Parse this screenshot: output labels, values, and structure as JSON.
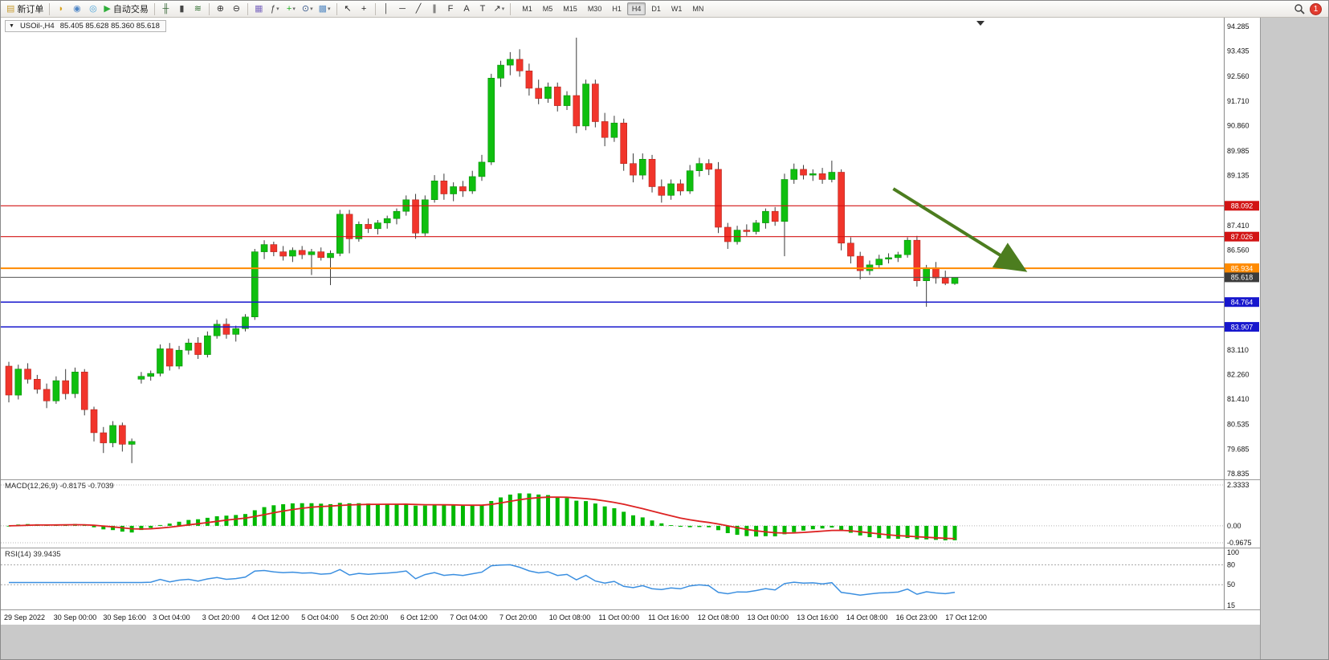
{
  "toolbar": {
    "buttons": [
      {
        "name": "new-order-button",
        "icon": "order-ticket-icon",
        "glyph": "▤",
        "glyph_color": "#c79b2f",
        "label": "新订单"
      },
      {
        "type": "separator"
      },
      {
        "name": "announcement-button",
        "icon": "megaphone-icon",
        "glyph": "◗",
        "glyph_color": "#d9a421"
      },
      {
        "name": "profile-button",
        "icon": "user-icon",
        "glyph": "◉",
        "glyph_color": "#4f86c6"
      },
      {
        "name": "community-button",
        "icon": "broadcast-icon",
        "glyph": "◎",
        "glyph_color": "#4aa3d8"
      },
      {
        "name": "autotrading-button",
        "icon": "play-icon",
        "glyph": "▶",
        "glyph_color": "#2fae3a",
        "label": "自动交易"
      },
      {
        "type": "separator"
      },
      {
        "name": "ohlc-bars-button",
        "icon": "ohlc-bars-icon",
        "glyph": "╫",
        "glyph_color": "#3d6b3d"
      },
      {
        "name": "candlestick-button",
        "icon": "candlestick-icon",
        "glyph": "▮",
        "glyph_color": "#444444"
      },
      {
        "name": "line-chart-button",
        "icon": "line-chart-icon",
        "glyph": "≋",
        "glyph_color": "#2e6e2e"
      },
      {
        "type": "separator"
      },
      {
        "name": "zoom-in-button",
        "icon": "zoom-in-icon",
        "glyph": "⊕",
        "glyph_color": "#333333"
      },
      {
        "name": "zoom-out-button",
        "icon": "zoom-out-icon",
        "glyph": "⊖",
        "glyph_color": "#333333"
      },
      {
        "type": "separator"
      },
      {
        "name": "tile-windows-button",
        "icon": "tile-windows-icon",
        "glyph": "▦",
        "glyph_color": "#7e6ac0"
      },
      {
        "name": "indicators-button",
        "icon": "function-icon",
        "glyph": "ƒ",
        "glyph_color": "#444444",
        "caret": true
      },
      {
        "name": "add-indicator-button",
        "icon": "plus-icon",
        "glyph": "+",
        "glyph_color": "#1faf1f",
        "caret": true
      },
      {
        "name": "periods-button",
        "icon": "clock-icon",
        "glyph": "⊙",
        "glyph_color": "#3a5a8c",
        "caret": true
      },
      {
        "name": "templates-button",
        "icon": "template-icon",
        "glyph": "▩",
        "glyph_color": "#5d8fc4",
        "caret": true
      },
      {
        "type": "separator"
      },
      {
        "name": "cursor-button",
        "icon": "cursor-icon",
        "glyph": "↖",
        "glyph_color": "#222222"
      },
      {
        "name": "crosshair-button",
        "icon": "crosshair-icon",
        "glyph": "+",
        "glyph_color": "#222222"
      },
      {
        "type": "separator"
      },
      {
        "name": "vertical-line-button",
        "icon": "vertical-line-icon",
        "glyph": "│",
        "glyph_color": "#333333"
      },
      {
        "name": "horizontal-line-button",
        "icon": "horizontal-line-icon",
        "glyph": "─",
        "glyph_color": "#333333"
      },
      {
        "name": "trendline-button",
        "icon": "trendline-icon",
        "glyph": "╱",
        "glyph_color": "#333333"
      },
      {
        "name": "channel-button",
        "icon": "channel-icon",
        "glyph": "∥",
        "glyph_color": "#333333"
      },
      {
        "name": "fibonacci-button",
        "icon": "fibonacci-icon",
        "glyph": "F",
        "glyph_color": "#333333"
      },
      {
        "name": "text-button",
        "icon": "text-icon",
        "glyph": "A",
        "glyph_color": "#333333"
      },
      {
        "name": "label-button",
        "icon": "text-label-icon",
        "glyph": "T",
        "glyph_color": "#333333"
      },
      {
        "name": "shapes-button",
        "icon": "arrow-shapes-icon",
        "glyph": "↗",
        "glyph_color": "#333333",
        "caret": true
      },
      {
        "type": "separator"
      }
    ],
    "timeframes": {
      "items": [
        "M1",
        "M5",
        "M15",
        "M30",
        "H1",
        "H4",
        "D1",
        "W1",
        "MN"
      ],
      "active": "H4"
    },
    "notification_count": "1"
  },
  "chart": {
    "title": {
      "symbol_period": "USOil-,H4",
      "ohlc": "85.405 85.628 85.360 85.618"
    }
  },
  "macd": {
    "label": "MACD(12,26,9) -0.8175 -0.7039",
    "value": "-0.8175",
    "signal_value": "-0.7039",
    "axis": [
      "2.3333",
      "0.00",
      "-0.9675"
    ],
    "histogram_color": "#00b800",
    "signal_color": "#dd2222"
  },
  "rsi": {
    "label": "RSI(14) 39.9435",
    "value": "39.9435",
    "axis": [
      "100",
      "80",
      "50",
      "15"
    ],
    "levels": [
      80,
      50
    ],
    "line_color": "#3b8fe0"
  },
  "chart_data": {
    "type": "candlestick",
    "symbol": "USOil-",
    "timeframe": "H4",
    "last_bar_ohlc": {
      "open": 85.405,
      "high": 85.628,
      "low": 85.36,
      "close": 85.618
    },
    "y_axis": {
      "min": 78.835,
      "max": 94.285,
      "ticks": [
        "94.285",
        "93.435",
        "92.560",
        "91.710",
        "90.860",
        "89.985",
        "89.135",
        "87.410",
        "86.560",
        "83.110",
        "82.260",
        "81.410",
        "80.535",
        "79.685",
        "78.835"
      ]
    },
    "x_axis": {
      "labels": [
        "29 Sep 2022",
        "30 Sep 00:00",
        "30 Sep 16:00",
        "3 Oct 04:00",
        "3 Oct 20:00",
        "4 Oct 12:00",
        "5 Oct 04:00",
        "5 Oct 20:00",
        "6 Oct 12:00",
        "7 Oct 04:00",
        "7 Oct 20:00",
        "10 Oct 08:00",
        "11 Oct 00:00",
        "11 Oct 16:00",
        "12 Oct 08:00",
        "13 Oct 00:00",
        "13 Oct 16:00",
        "14 Oct 08:00",
        "16 Oct 23:00",
        "17 Oct 12:00"
      ]
    },
    "horizontal_lines": [
      {
        "price": 88.092,
        "label": "88.092",
        "color": "#d21414",
        "width": 1.2
      },
      {
        "price": 87.026,
        "label": "87.026",
        "color": "#d21414",
        "width": 1.2
      },
      {
        "price": 85.934,
        "label": "85.934",
        "color": "#ff8a00",
        "width": 2
      },
      {
        "price": 84.764,
        "label": "84.764",
        "color": "#1717cd",
        "width": 1.5
      },
      {
        "price": 83.907,
        "label": "83.907",
        "color": "#1717cd",
        "width": 1.5
      }
    ],
    "current_price": {
      "price": 85.618,
      "label": "85.618",
      "badge_color": "#3c3c3c",
      "line_color": "#555555"
    },
    "annotation": {
      "type": "arrow",
      "color": "#4c7d1f",
      "from": {
        "bar": 93.5,
        "price": 88.68
      },
      "to": {
        "bar": 106.8,
        "price": 85.98
      }
    },
    "up_color": "#0fbf0f",
    "down_color": "#f1352b",
    "ohlc": [
      [
        82.55,
        82.7,
        81.3,
        81.55
      ],
      [
        81.55,
        82.6,
        81.4,
        82.45
      ],
      [
        82.45,
        82.65,
        81.95,
        82.1
      ],
      [
        82.1,
        82.25,
        81.6,
        81.75
      ],
      [
        81.75,
        81.95,
        81.1,
        81.35
      ],
      [
        81.35,
        82.2,
        81.25,
        82.05
      ],
      [
        82.05,
        82.45,
        81.4,
        81.6
      ],
      [
        81.6,
        82.5,
        81.45,
        82.35
      ],
      [
        82.35,
        82.45,
        80.85,
        81.05
      ],
      [
        81.05,
        81.15,
        79.95,
        80.25
      ],
      [
        80.25,
        80.45,
        79.55,
        79.9
      ],
      [
        79.9,
        80.65,
        79.75,
        80.5
      ],
      [
        80.5,
        80.6,
        79.6,
        79.85
      ],
      [
        79.85,
        80.05,
        79.2,
        79.95
      ],
      [
        82.1,
        82.35,
        81.95,
        82.2
      ],
      [
        82.2,
        82.4,
        82.05,
        82.3
      ],
      [
        82.3,
        83.3,
        82.2,
        83.15
      ],
      [
        83.15,
        83.35,
        82.4,
        82.55
      ],
      [
        82.55,
        83.25,
        82.45,
        83.1
      ],
      [
        83.1,
        83.5,
        82.95,
        83.35
      ],
      [
        83.35,
        83.55,
        82.8,
        82.95
      ],
      [
        82.95,
        83.75,
        82.85,
        83.6
      ],
      [
        83.6,
        84.15,
        83.5,
        84.0
      ],
      [
        84.0,
        84.2,
        83.5,
        83.65
      ],
      [
        83.65,
        83.95,
        83.4,
        83.85
      ],
      [
        83.85,
        84.35,
        83.75,
        84.25
      ],
      [
        84.25,
        86.6,
        84.15,
        86.5
      ],
      [
        86.5,
        86.9,
        86.25,
        86.75
      ],
      [
        86.75,
        86.85,
        86.35,
        86.5
      ],
      [
        86.5,
        86.7,
        86.2,
        86.35
      ],
      [
        86.35,
        86.65,
        86.15,
        86.55
      ],
      [
        86.55,
        86.7,
        86.25,
        86.4
      ],
      [
        86.4,
        86.6,
        85.7,
        86.5
      ],
      [
        86.5,
        86.65,
        86.2,
        86.3
      ],
      [
        86.3,
        86.55,
        85.35,
        86.45
      ],
      [
        86.45,
        87.95,
        86.35,
        87.8
      ],
      [
        87.8,
        87.95,
        86.45,
        86.95
      ],
      [
        86.95,
        87.55,
        86.85,
        87.45
      ],
      [
        87.45,
        87.65,
        87.15,
        87.3
      ],
      [
        87.3,
        87.6,
        87.1,
        87.5
      ],
      [
        87.5,
        87.75,
        87.3,
        87.65
      ],
      [
        87.65,
        88.0,
        87.45,
        87.9
      ],
      [
        87.9,
        88.45,
        87.75,
        88.3
      ],
      [
        88.3,
        88.5,
        86.95,
        87.15
      ],
      [
        87.15,
        88.45,
        87.05,
        88.3
      ],
      [
        88.3,
        89.15,
        88.2,
        88.95
      ],
      [
        88.95,
        89.2,
        88.3,
        88.5
      ],
      [
        88.5,
        88.9,
        88.25,
        88.75
      ],
      [
        88.75,
        88.95,
        88.4,
        88.6
      ],
      [
        88.6,
        89.3,
        88.5,
        89.1
      ],
      [
        89.1,
        89.85,
        88.95,
        89.6
      ],
      [
        89.6,
        92.65,
        89.5,
        92.5
      ],
      [
        92.5,
        93.1,
        92.2,
        92.95
      ],
      [
        92.95,
        93.4,
        92.6,
        93.15
      ],
      [
        93.15,
        93.5,
        92.55,
        92.75
      ],
      [
        92.75,
        93.0,
        91.9,
        92.15
      ],
      [
        92.15,
        92.45,
        91.6,
        91.8
      ],
      [
        91.8,
        92.35,
        91.65,
        92.2
      ],
      [
        92.2,
        92.35,
        91.35,
        91.55
      ],
      [
        91.55,
        92.05,
        91.4,
        91.9
      ],
      [
        91.9,
        93.9,
        90.6,
        90.85
      ],
      [
        90.85,
        92.45,
        90.7,
        92.3
      ],
      [
        92.3,
        92.45,
        90.8,
        91.0
      ],
      [
        91.0,
        91.3,
        90.15,
        90.45
      ],
      [
        90.45,
        91.2,
        90.3,
        90.95
      ],
      [
        90.95,
        91.1,
        89.3,
        89.55
      ],
      [
        89.55,
        89.9,
        88.9,
        89.15
      ],
      [
        89.15,
        89.9,
        89.0,
        89.7
      ],
      [
        89.7,
        89.85,
        88.55,
        88.75
      ],
      [
        88.75,
        89.0,
        88.2,
        88.45
      ],
      [
        88.45,
        89.0,
        88.3,
        88.85
      ],
      [
        88.85,
        89.0,
        88.45,
        88.6
      ],
      [
        88.6,
        89.5,
        88.5,
        89.3
      ],
      [
        89.3,
        89.75,
        89.1,
        89.55
      ],
      [
        89.55,
        89.7,
        89.15,
        89.35
      ],
      [
        89.35,
        89.6,
        87.15,
        87.35
      ],
      [
        87.35,
        87.5,
        86.6,
        86.85
      ],
      [
        86.85,
        87.4,
        86.75,
        87.25
      ],
      [
        87.25,
        87.45,
        87.05,
        87.2
      ],
      [
        87.2,
        87.6,
        87.1,
        87.5
      ],
      [
        87.5,
        88.0,
        87.3,
        87.9
      ],
      [
        87.9,
        88.05,
        87.4,
        87.55
      ],
      [
        87.55,
        89.2,
        86.35,
        89.0
      ],
      [
        89.0,
        89.55,
        88.85,
        89.35
      ],
      [
        89.35,
        89.5,
        89.0,
        89.15
      ],
      [
        89.15,
        89.35,
        88.95,
        89.2
      ],
      [
        89.2,
        89.4,
        88.85,
        89.0
      ],
      [
        89.0,
        89.65,
        88.9,
        89.25
      ],
      [
        89.25,
        89.35,
        86.55,
        86.8
      ],
      [
        86.8,
        87.0,
        86.1,
        86.35
      ],
      [
        86.35,
        86.5,
        85.55,
        85.85
      ],
      [
        85.85,
        86.2,
        85.7,
        86.05
      ],
      [
        86.05,
        86.4,
        85.95,
        86.25
      ],
      [
        86.25,
        86.45,
        86.1,
        86.3
      ],
      [
        86.3,
        86.5,
        86.15,
        86.4
      ],
      [
        86.4,
        87.0,
        86.3,
        86.9
      ],
      [
        86.9,
        87.05,
        85.3,
        85.5
      ],
      [
        85.5,
        86.05,
        84.6,
        85.95
      ],
      [
        85.95,
        86.15,
        85.4,
        85.6
      ],
      [
        85.6,
        85.85,
        85.35,
        85.41
      ],
      [
        85.405,
        85.628,
        85.36,
        85.618
      ]
    ],
    "indicators": [
      {
        "name": "MACD",
        "params": [
          12,
          26,
          9
        ],
        "values": [
          -0.8175,
          -0.7039
        ]
      },
      {
        "name": "RSI",
        "params": [
          14
        ],
        "value": 39.9435
      }
    ]
  }
}
